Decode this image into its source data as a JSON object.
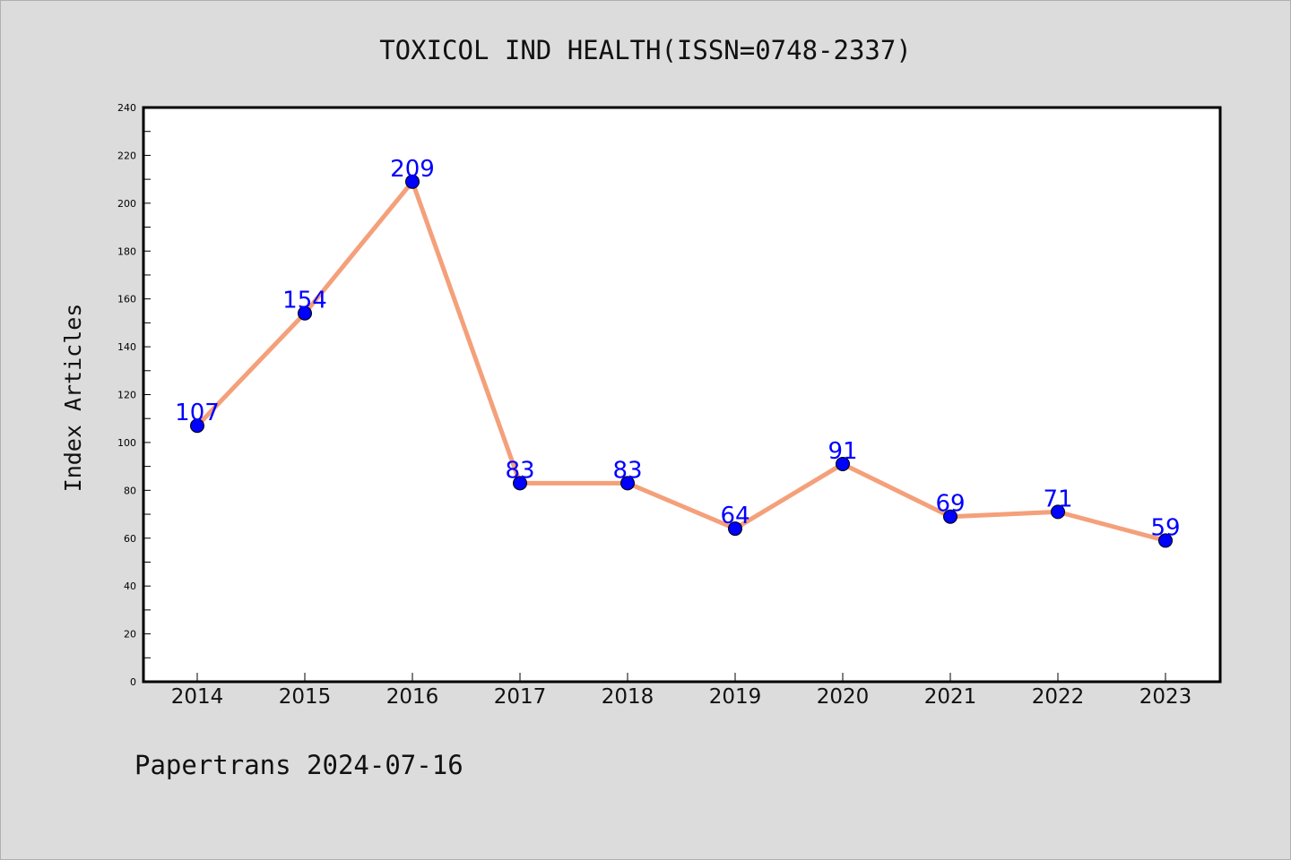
{
  "page": {
    "title": "TOXICOL IND HEALTH(ISSN=0748-2337)",
    "footer": "Papertrans 2024-07-16"
  },
  "chart_data": {
    "type": "line",
    "title": "TOXICOL IND HEALTH(ISSN=0748-2337)",
    "xlabel": "",
    "ylabel": "Index Articles",
    "categories": [
      "2014",
      "2015",
      "2016",
      "2017",
      "2018",
      "2019",
      "2020",
      "2021",
      "2022",
      "2023"
    ],
    "series": [
      {
        "values": [
          107,
          154,
          209,
          83,
          83,
          64,
          91,
          69,
          71,
          59
        ]
      }
    ],
    "ylim": [
      0,
      240
    ],
    "yticks": [
      0,
      20,
      40,
      60,
      80,
      100,
      120,
      140,
      160,
      180,
      200,
      220,
      240
    ],
    "grid": false,
    "data_labels": true,
    "colors": {
      "line": "#f4a07a",
      "marker": "#0000ff",
      "label": "#0000ff",
      "plot_background": "#ffffff",
      "page_background": "#dcdcdc"
    }
  }
}
